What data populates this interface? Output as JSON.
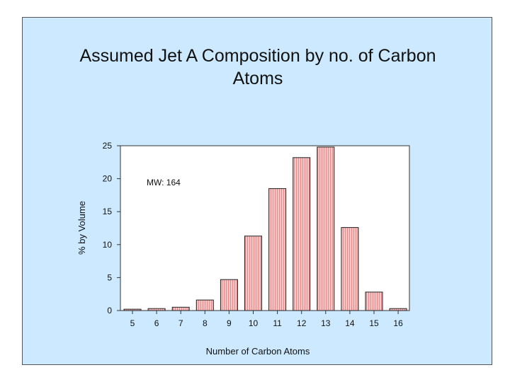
{
  "slide": {
    "title_line1": "Assumed Jet A Composition by no. of Carbon",
    "title_line2": "Atoms"
  },
  "chart_data": {
    "type": "bar",
    "title": "Assumed Jet A Composition by no. of Carbon Atoms",
    "xlabel": "Number of Carbon Atoms",
    "ylabel": "% by Volume",
    "categories": [
      "5",
      "6",
      "7",
      "8",
      "9",
      "10",
      "11",
      "12",
      "13",
      "14",
      "15",
      "16"
    ],
    "values": [
      0.2,
      0.3,
      0.5,
      1.6,
      4.7,
      11.3,
      18.5,
      23.2,
      24.8,
      12.6,
      2.8,
      0.3
    ],
    "ylim": [
      0,
      25
    ],
    "yticks": [
      0,
      5,
      10,
      15,
      20,
      25
    ],
    "annotation": "MW: 164",
    "grid": false,
    "legend": "none",
    "colors": {
      "bar_fill": "#f6c6c6",
      "bar_hatch": "#e58a8a",
      "bar_stroke": "#222222",
      "plot_bg": "#ffffff",
      "slide_bg": "#cce9ff"
    }
  }
}
